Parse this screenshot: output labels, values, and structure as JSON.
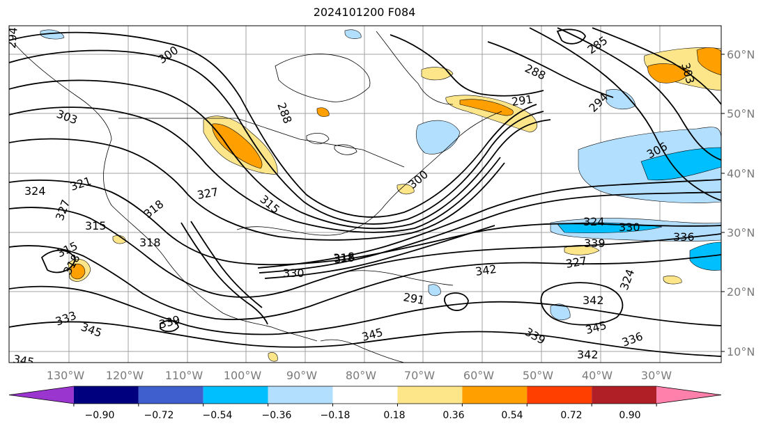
{
  "title": "2024101200 F084",
  "map": {
    "lat_labels": [
      "60°N",
      "50°N",
      "40°N",
      "30°N",
      "20°N",
      "10°N"
    ],
    "lon_labels": [
      "130°W",
      "120°W",
      "110°W",
      "100°W",
      "90°W",
      "80°W",
      "70°W",
      "60°W",
      "50°W",
      "40°W",
      "30°W"
    ],
    "contour_labels": [
      "294",
      "300",
      "285",
      "288",
      "303",
      "288",
      "291",
      "294",
      "303",
      "306",
      "324",
      "321",
      "327",
      "315",
      "318",
      "315",
      "318",
      "327",
      "300",
      "315",
      "318",
      "324",
      "330",
      "330",
      "336",
      "339",
      "327",
      "342",
      "318",
      "324",
      "342",
      "339",
      "345",
      "339",
      "333",
      "345",
      "345",
      "336",
      "342",
      "345",
      "291",
      "318"
    ],
    "colors": {
      "contour": "#000000",
      "coast": "#000000",
      "grid": "#a0a0a0",
      "light_yellow": "#fde68a",
      "orange": "#ff9f00",
      "light_blue": "#b3dfff",
      "sky_blue": "#00bfff"
    }
  },
  "colorbar": {
    "tick_labels": [
      "−0.90",
      "−0.72",
      "−0.54",
      "−0.36",
      "−0.18",
      "0.18",
      "0.36",
      "0.54",
      "0.72",
      "0.90"
    ],
    "colors": [
      "#9b35d0",
      "#00007f",
      "#3f5fcf",
      "#00bfff",
      "#b3dfff",
      "#ffffff",
      "#fde68a",
      "#ff9f00",
      "#ff3f00",
      "#b01f25",
      "#ff80aa"
    ]
  }
}
